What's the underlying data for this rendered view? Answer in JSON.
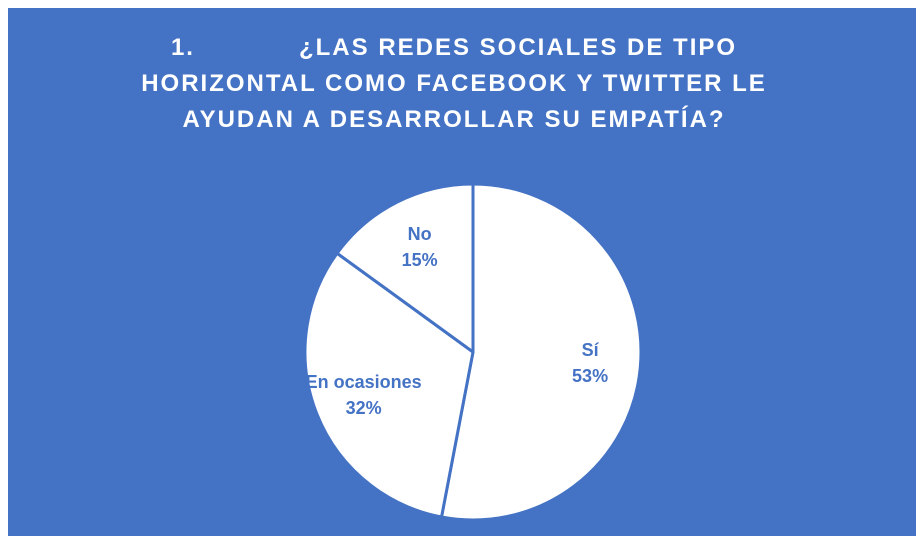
{
  "chart_data": {
    "type": "pie",
    "title": "1.            ¿LAS REDES SOCIALES DE TIPO HORIZONTAL COMO FACEBOOK Y TWITTER LE AYUDAN A DESARROLLAR SU EMPATÍA?",
    "categories": [
      "Sí",
      "En ocasiones",
      "No"
    ],
    "values": [
      53,
      32,
      15
    ],
    "value_labels": [
      "53%",
      "32%",
      "15%"
    ],
    "colors": [
      "#ffffff",
      "#ffffff",
      "#ffffff"
    ],
    "edge_color": "#4472c4"
  }
}
